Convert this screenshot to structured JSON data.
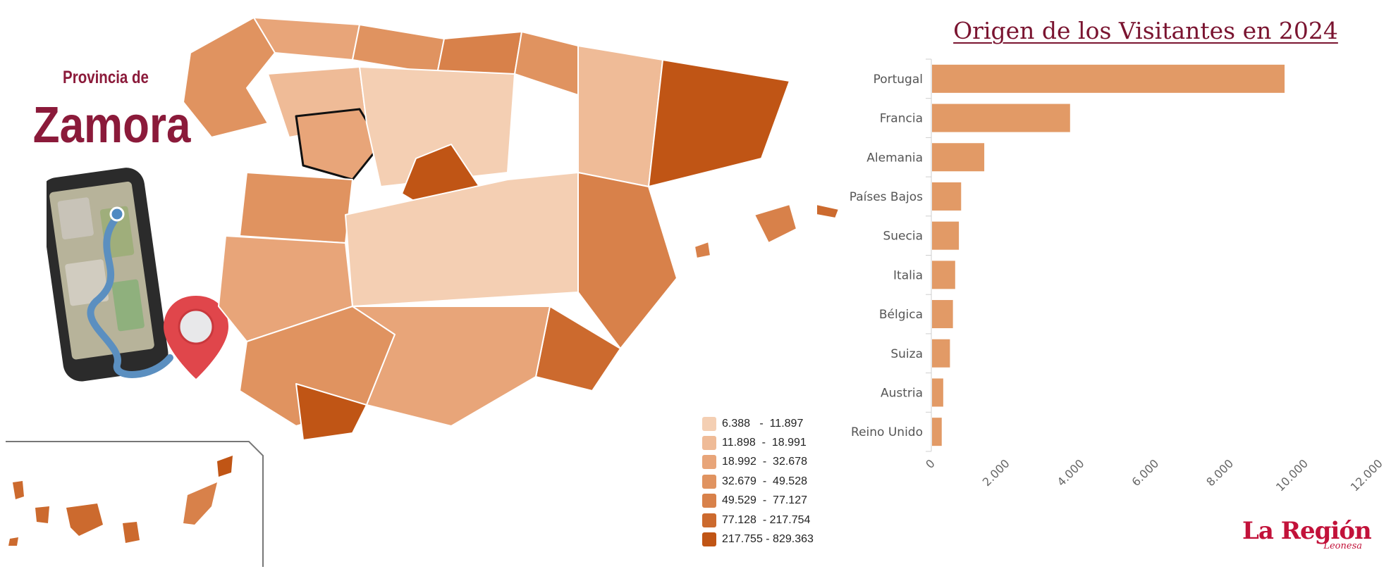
{
  "header": {
    "province_prefix": "Provincia de",
    "province_name": "Zamora"
  },
  "legend": {
    "items": [
      {
        "label": "6.388   -  11.897",
        "color": "#f4cfb3"
      },
      {
        "label": "11.898  -  18.991",
        "color": "#efbb97"
      },
      {
        "label": "18.992  -  32.678",
        "color": "#e8a579"
      },
      {
        "label": "32.679  -  49.528",
        "color": "#e09360"
      },
      {
        "label": "49.529  -  77.127",
        "color": "#d8814a"
      },
      {
        "label": "77.128  - 217.754",
        "color": "#cc6a2e"
      },
      {
        "label": "217.755 - 829.363",
        "color": "#c05515"
      }
    ]
  },
  "chart_data": {
    "type": "bar",
    "orientation": "horizontal",
    "title": "Origen de los Visitantes en 2024",
    "categories": [
      "Portugal",
      "Francia",
      "Alemania",
      "Países Bajos",
      "Suecia",
      "Italia",
      "Bélgica",
      "Suiza",
      "Austria",
      "Reino Unido"
    ],
    "values": [
      9450,
      3700,
      1400,
      780,
      720,
      620,
      560,
      480,
      300,
      260
    ],
    "xlim": [
      0,
      12000
    ],
    "x_tick_labels": [
      "0",
      "2.000",
      "4.000",
      "6.000",
      "8.000",
      "10.000",
      "12.000"
    ],
    "xlabel": "",
    "ylabel": "",
    "bar_color": "#e29a66",
    "grid": false
  },
  "brand": {
    "name": "La Región",
    "sub": "Leonesa",
    "color": "#c2123a"
  },
  "colors": {
    "accent": "#8b1a3a",
    "zamora_outline": "#111111"
  }
}
